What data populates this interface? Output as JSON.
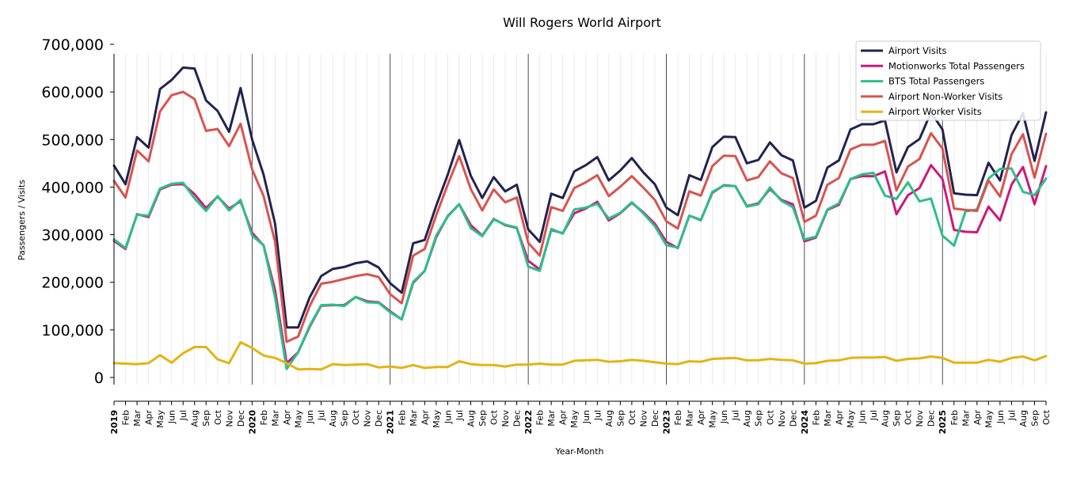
{
  "chart_data": {
    "type": "line",
    "title": "Will Rogers World Airport",
    "xlabel": "Year-Month",
    "ylabel": "Passengers / Visits",
    "ylim": [
      -15000,
      680000
    ],
    "yticks": [
      0,
      100000,
      200000,
      300000,
      400000,
      500000,
      600000,
      700000
    ],
    "ytick_labels": [
      "0",
      "100,000",
      "200,000",
      "300,000",
      "400,000",
      "500,000",
      "600,000",
      "700,000"
    ],
    "year_labels": [
      "2019",
      "2020",
      "2021",
      "2022",
      "2023",
      "2024",
      "2025"
    ],
    "month_labels": [
      "Feb",
      "Mar",
      "Apr",
      "May",
      "Jun",
      "Jul",
      "Aug",
      "Sep",
      "Oct",
      "Nov",
      "Dec"
    ],
    "x_start": "2019-01",
    "x_end": "2025-10",
    "grid": "vertical monthly lines, darker line at each January",
    "legend_position": "top-right",
    "series": [
      {
        "name": "Airport Visits",
        "color": "#23234f",
        "values": [
          445000,
          406000,
          505000,
          483000,
          606000,
          625000,
          651000,
          649000,
          582000,
          560000,
          516000,
          608000,
          500000,
          426000,
          323000,
          105000,
          105000,
          168000,
          213000,
          228000,
          232000,
          240000,
          244000,
          231000,
          198000,
          178000,
          282000,
          289000,
          361000,
          426000,
          499000,
          424000,
          377000,
          421000,
          391000,
          405000,
          311000,
          285000,
          386000,
          377000,
          433000,
          446000,
          463000,
          414000,
          435000,
          461000,
          431000,
          406000,
          357000,
          341000,
          425000,
          415000,
          484000,
          506000,
          505000,
          450000,
          457000,
          494000,
          467000,
          456000,
          357000,
          371000,
          441000,
          456000,
          521000,
          532000,
          532000,
          540000,
          431000,
          484000,
          501000,
          557000,
          521000,
          387000,
          384000,
          383000,
          451000,
          414000,
          509000,
          555000,
          455000,
          557000
        ]
      },
      {
        "name": "Motionworks Total Passengers",
        "color": "#cc1a7a",
        "values": [
          287000,
          270000,
          343000,
          337000,
          395000,
          405000,
          406000,
          385000,
          356000,
          380000,
          355000,
          370000,
          304000,
          277000,
          183000,
          30000,
          53000,
          106000,
          151000,
          152000,
          152000,
          169000,
          160000,
          158000,
          139000,
          122000,
          199000,
          224000,
          295000,
          339000,
          364000,
          320000,
          298000,
          333000,
          320000,
          314000,
          245000,
          227000,
          310000,
          303000,
          345000,
          355000,
          369000,
          330000,
          345000,
          367000,
          347000,
          323000,
          285000,
          272000,
          340000,
          331000,
          388000,
          404000,
          402000,
          360000,
          366000,
          396000,
          373000,
          364000,
          286000,
          294000,
          352000,
          363000,
          417000,
          423000,
          423000,
          433000,
          343000,
          383000,
          398000,
          446000,
          417000,
          310000,
          306000,
          305000,
          359000,
          330000,
          405000,
          442000,
          364000,
          444000
        ]
      },
      {
        "name": "BTS Total Passengers",
        "color": "#2bbf8a",
        "values": [
          290000,
          272000,
          342000,
          340000,
          397000,
          407000,
          409000,
          376000,
          350000,
          381000,
          351000,
          373000,
          298000,
          278000,
          168000,
          18000,
          53000,
          108000,
          152000,
          153000,
          150000,
          169000,
          158000,
          157000,
          137000,
          122000,
          201000,
          224000,
          298000,
          338000,
          364000,
          314000,
          297000,
          332000,
          321000,
          315000,
          233000,
          224000,
          312000,
          302000,
          353000,
          357000,
          365000,
          334000,
          346000,
          368000,
          345000,
          318000,
          278000,
          273000,
          340000,
          330000,
          390000,
          403000,
          402000,
          359000,
          364000,
          399000,
          371000,
          358000,
          290000,
          296000,
          353000,
          366000,
          417000,
          427000,
          430000,
          382000,
          375000,
          410000,
          370000,
          376000,
          298000,
          277000,
          349000,
          353000,
          418000,
          438000,
          439000,
          390000,
          383000,
          418000
        ]
      },
      {
        "name": "Airport Non-Worker Visits",
        "color": "#d9534f",
        "values": [
          413000,
          378000,
          477000,
          454000,
          559000,
          593000,
          600000,
          585000,
          518000,
          522000,
          486000,
          533000,
          437000,
          381000,
          285000,
          75000,
          86000,
          150000,
          197000,
          201000,
          207000,
          213000,
          217000,
          211000,
          175000,
          156000,
          256000,
          270000,
          341000,
          405000,
          465000,
          396000,
          351000,
          395000,
          368000,
          378000,
          283000,
          256000,
          358000,
          350000,
          398000,
          410000,
          425000,
          381000,
          401000,
          423000,
          399000,
          373000,
          328000,
          313000,
          391000,
          382000,
          444000,
          466000,
          465000,
          414000,
          421000,
          454000,
          429000,
          419000,
          327000,
          340000,
          405000,
          419000,
          479000,
          489000,
          489000,
          497000,
          393000,
          443000,
          459000,
          513000,
          481000,
          355000,
          352000,
          350000,
          414000,
          380000,
          469000,
          511000,
          420000,
          512000
        ]
      },
      {
        "name": "Airport Worker Visits",
        "color": "#e3b414",
        "values": [
          30000,
          29000,
          28000,
          30000,
          47000,
          31000,
          51000,
          64000,
          64000,
          38000,
          30000,
          74000,
          62000,
          46000,
          41000,
          30000,
          17000,
          18000,
          17000,
          28000,
          26000,
          27000,
          28000,
          21000,
          23000,
          20000,
          26000,
          20000,
          22000,
          22000,
          34000,
          28000,
          26000,
          26000,
          23000,
          27000,
          27000,
          29000,
          27000,
          27000,
          35000,
          36000,
          37000,
          33000,
          34000,
          37000,
          35000,
          32000,
          29000,
          28000,
          34000,
          33000,
          39000,
          40000,
          41000,
          36000,
          36000,
          39000,
          37000,
          36000,
          29000,
          30000,
          35000,
          36000,
          41000,
          42000,
          42000,
          43000,
          35000,
          39000,
          40000,
          44000,
          41000,
          31000,
          31000,
          31000,
          37000,
          33000,
          41000,
          44000,
          36000,
          45000
        ]
      }
    ]
  }
}
